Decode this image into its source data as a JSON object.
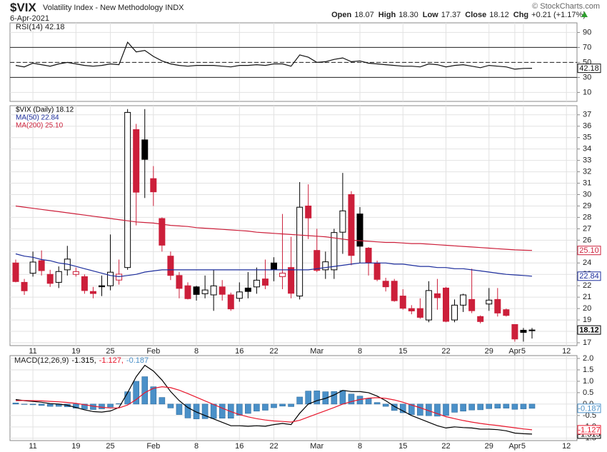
{
  "header": {
    "symbol": "$VIX",
    "name": "Volatility Index - New Methodology INDX",
    "date": "6-Apr-2021",
    "source": "© StockCharts.com",
    "quote": [
      {
        "label": "Open",
        "value": "18.07"
      },
      {
        "label": "High",
        "value": "18.30"
      },
      {
        "label": "Low",
        "value": "17.37"
      },
      {
        "label": "Close",
        "value": "18.12"
      },
      {
        "label": "Chg",
        "value": "+0.21 (+1.17%)"
      }
    ]
  },
  "chart_data": [
    {
      "type": "line",
      "legend": "RSI(14) 42.18",
      "ylim": [
        -2,
        102.8
      ],
      "yticks": [
        10,
        30,
        50,
        70,
        90
      ],
      "grid": true,
      "hlines": [
        70,
        50,
        30
      ],
      "hline_dashed": [
        false,
        true,
        false
      ],
      "series": [
        {
          "type": "line",
          "color": "#111111",
          "values": [
            46,
            44,
            49,
            47,
            45,
            48,
            50,
            48,
            46,
            45,
            46,
            48,
            47,
            77,
            64,
            66,
            58,
            52,
            48,
            46,
            45,
            46,
            46,
            46,
            45,
            44,
            46,
            46,
            47,
            46,
            48,
            48,
            45,
            60,
            57,
            50,
            51,
            54,
            56,
            51,
            52,
            49,
            48,
            47,
            46,
            45,
            45,
            44,
            48,
            47,
            44,
            46,
            47,
            45,
            43,
            46,
            45,
            44,
            41,
            42,
            42.18
          ]
        }
      ]
    },
    {
      "type": "candlestick",
      "ylim": [
        16.75,
        37.8
      ],
      "yticks": [
        17,
        18,
        19,
        20,
        21,
        22,
        23,
        24,
        25,
        26,
        27,
        28,
        29,
        30,
        31,
        32,
        33,
        34,
        35,
        36,
        37
      ],
      "grid": true,
      "categories": [
        null,
        null,
        "11",
        null,
        null,
        null,
        null,
        "19",
        null,
        null,
        null,
        "25",
        null,
        null,
        null,
        null,
        "Feb",
        null,
        null,
        null,
        null,
        "8",
        null,
        null,
        null,
        null,
        "16",
        null,
        null,
        null,
        "22",
        null,
        null,
        null,
        null,
        "Mar",
        null,
        null,
        null,
        null,
        "8",
        null,
        null,
        null,
        null,
        "15",
        null,
        null,
        null,
        null,
        "22",
        null,
        null,
        null,
        null,
        "29",
        null,
        null,
        "Apr",
        "5",
        null,
        null,
        null,
        null,
        "12"
      ],
      "series": [
        {
          "type": "candlestick",
          "name": "$VIX (Daily) 18.12",
          "color": "#000000",
          "up_color": "#000000",
          "down_color": "#cc1f3a",
          "open": [
            24.0,
            22.3,
            23.1,
            24.2,
            23.0,
            22.3,
            23.4,
            23.0,
            22.8,
            21.5,
            22.0,
            22.0,
            22.5,
            23.6,
            35.7,
            34.8,
            31.4,
            27.9,
            24.6,
            22.9,
            22.0,
            21.9,
            21.3,
            21.2,
            21.9,
            21.2,
            20.9,
            21.8,
            21.9,
            22.6,
            24.0,
            22.8,
            23.6,
            21.1,
            29.0,
            25.1,
            23.4,
            23.4,
            26.7,
            30.0,
            28.3,
            25.3,
            24.0,
            22.4,
            22.4,
            21.1,
            20.0,
            20.0,
            19.0,
            21.3,
            21.8,
            19.0,
            20.3,
            20.8,
            19.3,
            20.4,
            20.8,
            19.9,
            18.6,
            18.1,
            18.07,
            null,
            null,
            null,
            null
          ],
          "high": [
            24.3,
            22.6,
            25.0,
            25.1,
            23.4,
            23.7,
            25.5,
            23.6,
            23.0,
            21.9,
            22.9,
            26.5,
            24.3,
            37.5,
            36.2,
            37.5,
            32.5,
            28.0,
            25.0,
            23.2,
            22.3,
            22.0,
            22.9,
            23.4,
            22.5,
            21.4,
            22.3,
            23.2,
            23.6,
            24.3,
            24.5,
            28.3,
            26.3,
            31.1,
            30.9,
            27.0,
            25.0,
            27.0,
            31.9,
            30.3,
            28.9,
            25.4,
            24.2,
            22.7,
            22.6,
            21.7,
            20.3,
            20.9,
            22.4,
            22.6,
            21.9,
            20.8,
            21.3,
            23.5,
            19.4,
            21.8,
            21.8,
            20.0,
            18.6,
            18.3,
            18.3,
            null,
            null,
            null,
            null
          ],
          "low": [
            22.3,
            21.2,
            22.8,
            22.9,
            21.9,
            21.8,
            22.9,
            22.8,
            21.3,
            20.9,
            21.1,
            21.6,
            22.1,
            23.4,
            27.3,
            29.7,
            29.0,
            25.0,
            22.5,
            20.9,
            20.8,
            20.7,
            20.9,
            19.8,
            20.7,
            19.8,
            20.6,
            20.9,
            21.3,
            21.7,
            22.4,
            21.7,
            20.9,
            20.8,
            26.1,
            23.2,
            22.6,
            22.6,
            24.8,
            23.8,
            24.0,
            22.9,
            22.4,
            21.5,
            20.6,
            19.9,
            19.5,
            19.1,
            18.8,
            19.9,
            18.8,
            18.8,
            19.7,
            19.6,
            18.7,
            19.8,
            19.3,
            19.3,
            17.1,
            17.1,
            17.37,
            null,
            null,
            null,
            null
          ],
          "close": [
            22.37,
            21.56,
            24.08,
            23.33,
            22.21,
            23.25,
            24.34,
            23.24,
            21.58,
            21.32,
            21.91,
            23.19,
            23.02,
            37.21,
            30.21,
            33.09,
            30.24,
            25.56,
            22.91,
            21.77,
            20.87,
            21.24,
            21.63,
            21.99,
            21.25,
            19.97,
            21.46,
            21.5,
            22.49,
            22.05,
            23.45,
            23.11,
            21.34,
            28.89,
            27.95,
            23.35,
            24.1,
            26.67,
            28.57,
            24.66,
            25.47,
            24.03,
            22.56,
            21.91,
            20.69,
            20.03,
            19.79,
            19.23,
            21.58,
            20.95,
            18.88,
            20.3,
            21.2,
            19.81,
            18.86,
            20.74,
            19.61,
            19.4,
            17.33,
            17.91,
            18.12,
            null,
            null,
            null,
            null
          ]
        },
        {
          "type": "line",
          "name": "MA(50) 22.84",
          "color": "#1c2d9c",
          "values": [
            24.8,
            24.6,
            24.5,
            24.3,
            24.2,
            24.0,
            23.9,
            23.7,
            23.5,
            23.3,
            23.1,
            22.9,
            22.8,
            22.9,
            23.0,
            23.2,
            23.3,
            23.4,
            23.4,
            23.4,
            23.4,
            23.4,
            23.4,
            23.4,
            23.4,
            23.4,
            23.4,
            23.4,
            23.4,
            23.4,
            23.4,
            23.4,
            23.4,
            23.4,
            23.4,
            23.5,
            23.6,
            23.7,
            23.8,
            23.9,
            24.0,
            24.0,
            24.0,
            24.0,
            23.9,
            23.9,
            23.8,
            23.7,
            23.7,
            23.6,
            23.6,
            23.5,
            23.5,
            23.4,
            23.3,
            23.2,
            23.1,
            23.0,
            22.95,
            22.9,
            22.84,
            null,
            null,
            null,
            null
          ]
        },
        {
          "type": "line",
          "name": "MA(200) 25.10",
          "color": "#cc1f3a",
          "end_label": "25.10",
          "values": [
            29.0,
            28.9,
            28.8,
            28.7,
            28.6,
            28.5,
            28.4,
            28.3,
            28.2,
            28.1,
            28.0,
            27.9,
            27.8,
            27.7,
            27.6,
            27.55,
            27.5,
            27.4,
            27.3,
            27.25,
            27.2,
            27.1,
            27.05,
            27.0,
            26.95,
            26.9,
            26.85,
            26.8,
            26.7,
            26.65,
            26.6,
            26.55,
            26.5,
            26.45,
            26.4,
            26.35,
            26.3,
            26.2,
            26.1,
            26.0,
            25.95,
            25.9,
            25.85,
            25.8,
            25.8,
            25.75,
            25.7,
            25.7,
            25.65,
            25.6,
            25.55,
            25.5,
            25.45,
            25.4,
            25.35,
            25.3,
            25.25,
            25.2,
            25.15,
            25.12,
            25.1,
            null,
            null,
            null,
            null
          ]
        }
      ]
    },
    {
      "type": "combo",
      "title": "MACD(12,26,9)",
      "ylim": [
        -1.6,
        2.125
      ],
      "grid": true,
      "yticks": [
        {
          "value": 2,
          "label": "2.0"
        },
        {
          "value": 1.5,
          "label": "1.5"
        },
        {
          "value": 1,
          "label": "1.0"
        },
        {
          "value": 0.5,
          "label": "0.5"
        },
        {
          "value": 0,
          "label": "0.0"
        },
        {
          "value": -0.5,
          "label": "-0.5"
        },
        {
          "value": -1,
          "label": "-1.0"
        },
        {
          "value": -1.5,
          "label": "-1.5"
        }
      ],
      "categories": [
        null,
        null,
        "11",
        null,
        null,
        null,
        null,
        "19",
        null,
        null,
        null,
        "25",
        null,
        null,
        null,
        null,
        "Feb",
        null,
        null,
        null,
        null,
        "8",
        null,
        null,
        null,
        null,
        "16",
        null,
        null,
        null,
        "22",
        null,
        null,
        null,
        null,
        "Mar",
        null,
        null,
        null,
        null,
        "8",
        null,
        null,
        null,
        null,
        "15",
        null,
        null,
        null,
        null,
        "22",
        null,
        null,
        null,
        null,
        "29",
        null,
        null,
        "Apr",
        "5",
        null,
        null,
        null,
        null,
        "12"
      ],
      "series": [
        {
          "type": "bar",
          "name": "-0.187",
          "color": "#4a90c8",
          "values": [
            0.05,
            -0.01,
            -0.03,
            -0.06,
            -0.1,
            -0.1,
            -0.12,
            -0.18,
            -0.22,
            -0.24,
            -0.21,
            -0.13,
            0.02,
            0.54,
            1.0,
            1.2,
            0.76,
            0.29,
            -0.17,
            -0.46,
            -0.61,
            -0.65,
            -0.64,
            -0.63,
            -0.62,
            -0.62,
            -0.49,
            -0.41,
            -0.31,
            -0.27,
            -0.16,
            -0.09,
            -0.11,
            0.31,
            0.57,
            0.58,
            0.54,
            0.55,
            0.6,
            0.44,
            0.35,
            0.24,
            0.07,
            -0.1,
            -0.28,
            -0.38,
            -0.46,
            -0.49,
            -0.51,
            -0.53,
            -0.5,
            -0.36,
            -0.31,
            -0.26,
            -0.25,
            -0.2,
            -0.18,
            -0.18,
            -0.23,
            -0.21,
            -0.187,
            null,
            null,
            null,
            null
          ]
        },
        {
          "type": "line",
          "name": "-1.315,",
          "color": "#000000",
          "values": [
            0.2,
            0.15,
            0.12,
            0.08,
            0.02,
            0.0,
            -0.05,
            -0.15,
            -0.25,
            -0.33,
            -0.35,
            -0.3,
            -0.15,
            0.5,
            1.2,
            1.7,
            1.45,
            1.05,
            0.55,
            0.15,
            -0.15,
            -0.35,
            -0.5,
            -0.65,
            -0.8,
            -0.95,
            -0.95,
            -0.97,
            -0.95,
            -0.97,
            -0.9,
            -0.85,
            -0.9,
            -0.4,
            0.0,
            0.15,
            0.25,
            0.4,
            0.6,
            0.55,
            0.55,
            0.5,
            0.35,
            0.15,
            -0.1,
            -0.3,
            -0.5,
            -0.65,
            -0.8,
            -0.95,
            -1.05,
            -1.0,
            -1.03,
            -1.05,
            -1.1,
            -1.1,
            -1.12,
            -1.17,
            -1.27,
            -1.3,
            -1.315,
            null,
            null,
            null,
            null
          ]
        },
        {
          "type": "line",
          "name": "-1.127,",
          "color": "#e8172c",
          "values": [
            0.15,
            0.16,
            0.15,
            0.14,
            0.12,
            0.1,
            0.07,
            0.03,
            -0.03,
            -0.09,
            -0.14,
            -0.17,
            -0.17,
            -0.04,
            0.2,
            0.5,
            0.69,
            0.76,
            0.72,
            0.61,
            0.46,
            0.3,
            0.14,
            -0.02,
            -0.18,
            -0.33,
            -0.46,
            -0.56,
            -0.64,
            -0.7,
            -0.74,
            -0.76,
            -0.79,
            -0.71,
            -0.57,
            -0.43,
            -0.29,
            -0.15,
            0.0,
            0.11,
            0.2,
            0.26,
            0.28,
            0.25,
            0.18,
            0.08,
            -0.04,
            -0.16,
            -0.29,
            -0.42,
            -0.55,
            -0.64,
            -0.72,
            -0.79,
            -0.85,
            -0.9,
            -0.94,
            -0.99,
            -1.04,
            -1.09,
            -1.127,
            null,
            null,
            null,
            null
          ]
        }
      ]
    }
  ]
}
